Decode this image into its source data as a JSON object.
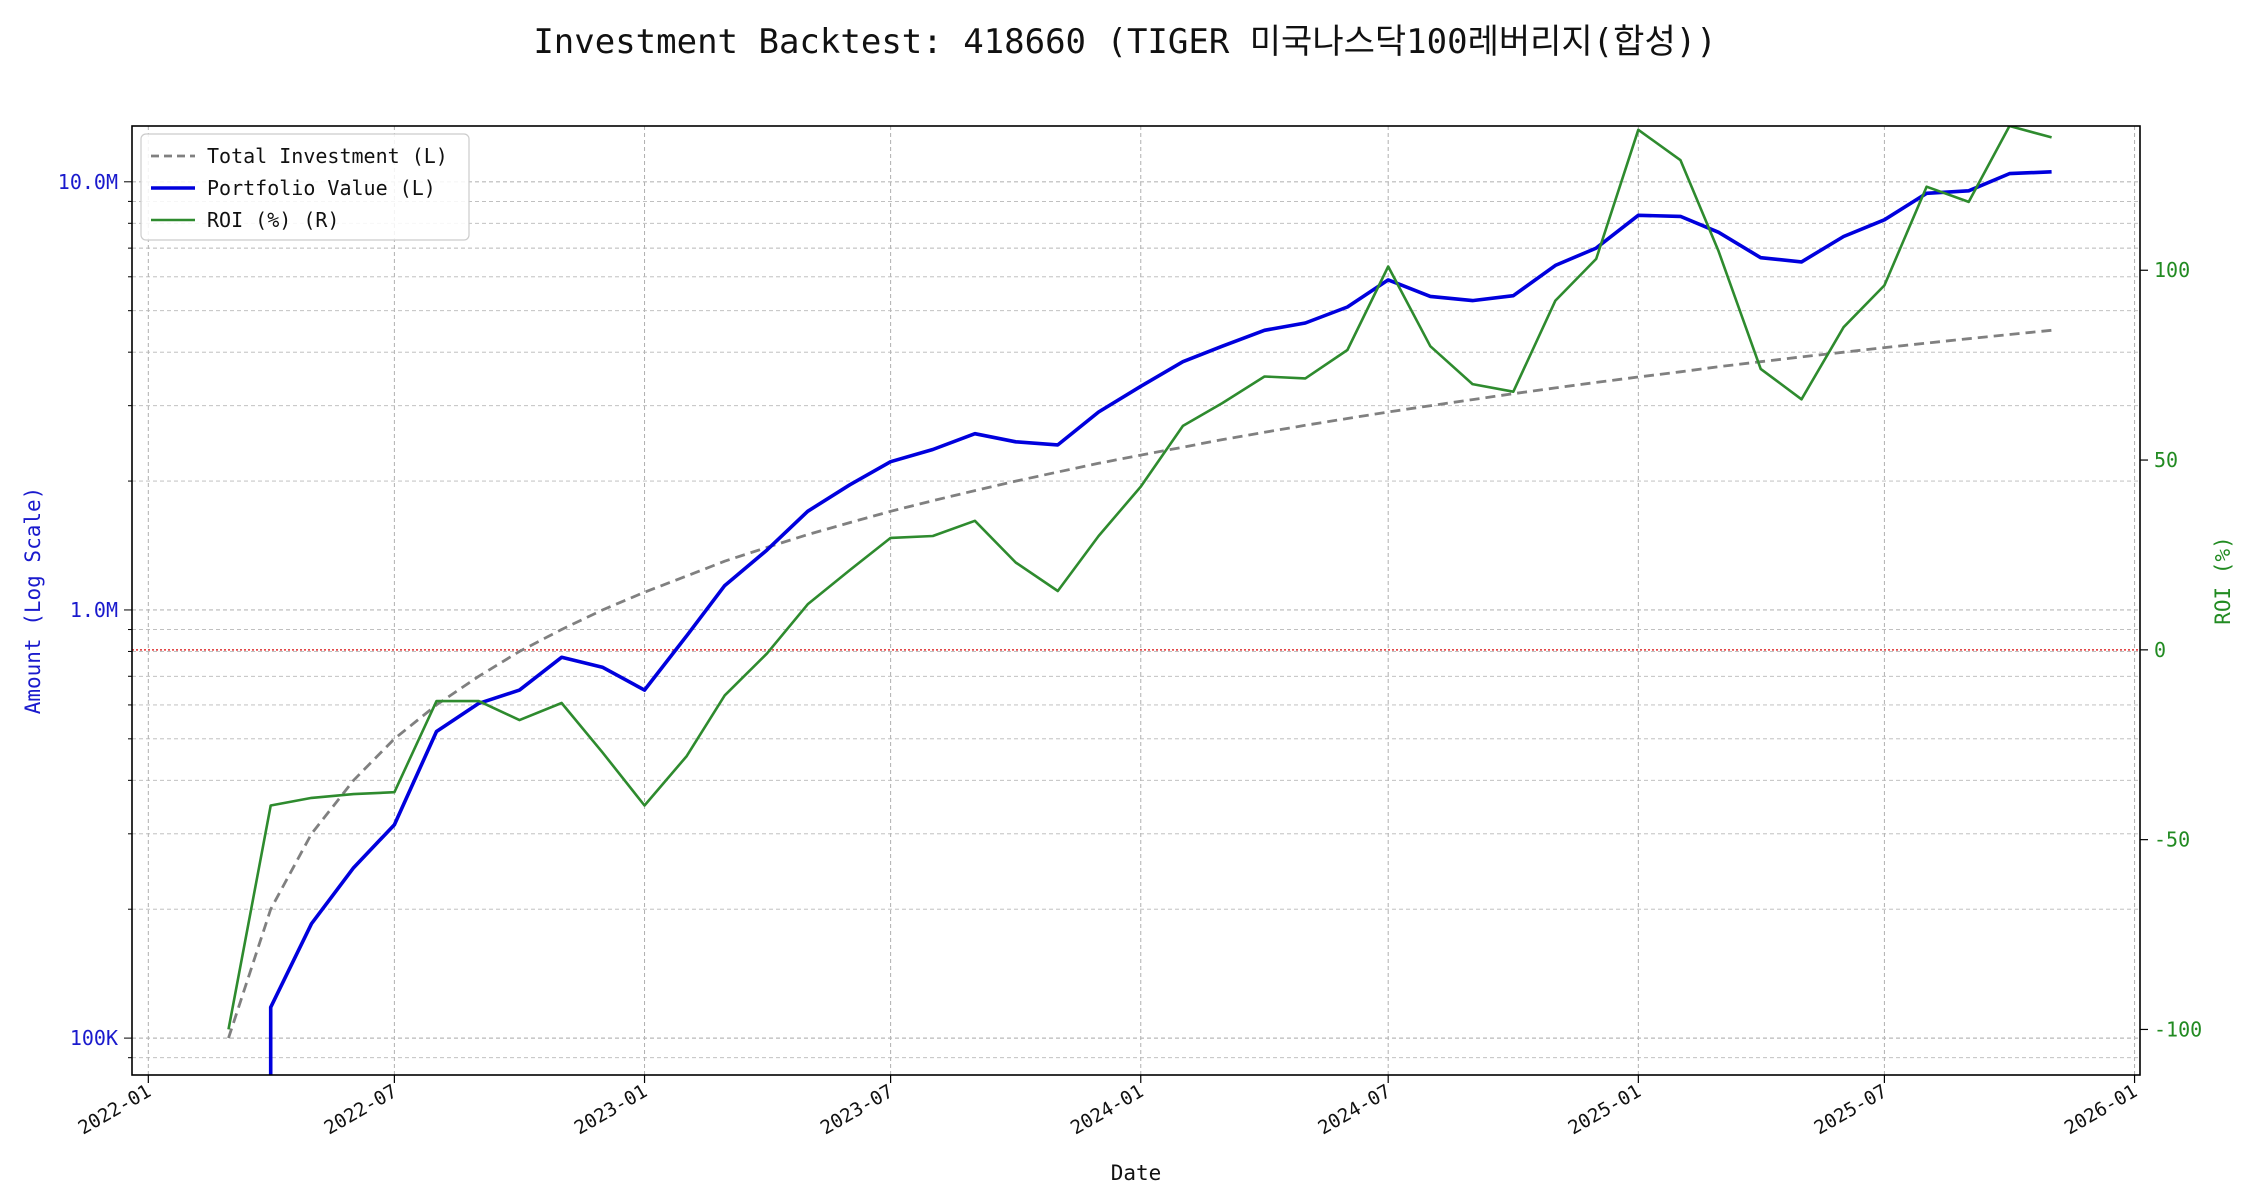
{
  "chart_data": {
    "type": "line",
    "title": "Investment Backtest: 418660 (TIGER 미국나스닥100레버리지(합성))",
    "xlabel": "Date",
    "ylabel_left": "Amount (Log Scale)",
    "ylabel_right": "ROI (%)",
    "left_scale": "log",
    "left_ylim": [
      82000,
      13500000
    ],
    "right_ylim": [
      -112,
      138
    ],
    "xlim": [
      "2021-12-20",
      "2026-01-05"
    ],
    "x_ticks": [
      "2022-01",
      "2022-07",
      "2023-01",
      "2023-07",
      "2024-01",
      "2024-07",
      "2025-01",
      "2025-07",
      "2026-01"
    ],
    "left_ticks": [
      {
        "value": 100000,
        "label": "100K"
      },
      {
        "value": 1000000,
        "label": "1.0M"
      },
      {
        "value": 10000000,
        "label": "10.0M"
      }
    ],
    "right_ticks": [
      -100,
      -50,
      0,
      50,
      100
    ],
    "grid": true,
    "legend_position": "top-left",
    "reference_line": {
      "axis": "right",
      "value": 0,
      "color": "#e03030"
    },
    "colors": {
      "investment": "#808080",
      "portfolio": "#0000dd",
      "roi": "#2e8b2e",
      "left_axis": "#1a1acd",
      "right_axis": "#228b22"
    },
    "x": [
      "2022-03",
      "2022-04",
      "2022-05",
      "2022-06",
      "2022-07",
      "2022-08",
      "2022-09",
      "2022-10",
      "2022-11",
      "2022-12",
      "2023-01",
      "2023-02",
      "2023-03",
      "2023-04",
      "2023-05",
      "2023-06",
      "2023-07",
      "2023-08",
      "2023-09",
      "2023-10",
      "2023-11",
      "2023-12",
      "2024-01",
      "2024-02",
      "2024-03",
      "2024-04",
      "2024-05",
      "2024-06",
      "2024-07",
      "2024-08",
      "2024-09",
      "2024-10",
      "2024-11",
      "2024-12",
      "2025-01",
      "2025-02",
      "2025-03",
      "2025-04",
      "2025-05",
      "2025-06",
      "2025-07",
      "2025-08",
      "2025-09",
      "2025-10",
      "2025-11"
    ],
    "series": [
      {
        "name": "Total Investment (L)",
        "axis": "left",
        "style": "dashed",
        "values": [
          100000,
          200000,
          300000,
          400000,
          500000,
          600000,
          700000,
          800000,
          900000,
          1000000,
          1100000,
          1200000,
          1300000,
          1400000,
          1500000,
          1600000,
          1700000,
          1800000,
          1900000,
          2000000,
          2100000,
          2200000,
          2300000,
          2400000,
          2500000,
          2600000,
          2700000,
          2800000,
          2900000,
          3000000,
          3100000,
          3200000,
          3300000,
          3400000,
          3500000,
          3600000,
          3700000,
          3800000,
          3900000,
          4000000,
          4100000,
          4200000,
          4300000,
          4400000,
          4500000
        ]
      },
      {
        "name": "Portfolio Value (L)",
        "axis": "left",
        "style": "solid",
        "values": [
          null,
          118000,
          185000,
          250000,
          315000,
          520000,
          605000,
          650000,
          775000,
          735000,
          650000,
          870000,
          1140000,
          1380000,
          1700000,
          1960000,
          2220000,
          2370000,
          2580000,
          2470000,
          2430000,
          2900000,
          3330000,
          3800000,
          4130000,
          4500000,
          4680000,
          5100000,
          5900000,
          5400000,
          5280000,
          5420000,
          6380000,
          7000000,
          8350000,
          8300000,
          7620000,
          6650000,
          6500000,
          7450000,
          8150000,
          9400000,
          9530000,
          10450000,
          10550000
        ]
      },
      {
        "name": "ROI (%) (R)",
        "axis": "right",
        "style": "solid",
        "values": [
          -100,
          -41,
          -39,
          -38,
          -37.5,
          -13.5,
          -13.5,
          -18.5,
          -14,
          -27,
          -41,
          -28,
          -12,
          -1,
          12,
          21,
          29.5,
          30,
          34,
          23,
          15.5,
          30,
          43,
          59,
          65,
          72,
          71.5,
          79,
          101,
          80,
          70,
          68,
          92,
          103,
          137,
          129,
          105,
          74,
          66,
          85,
          96,
          122,
          118,
          138,
          135
        ]
      }
    ]
  }
}
